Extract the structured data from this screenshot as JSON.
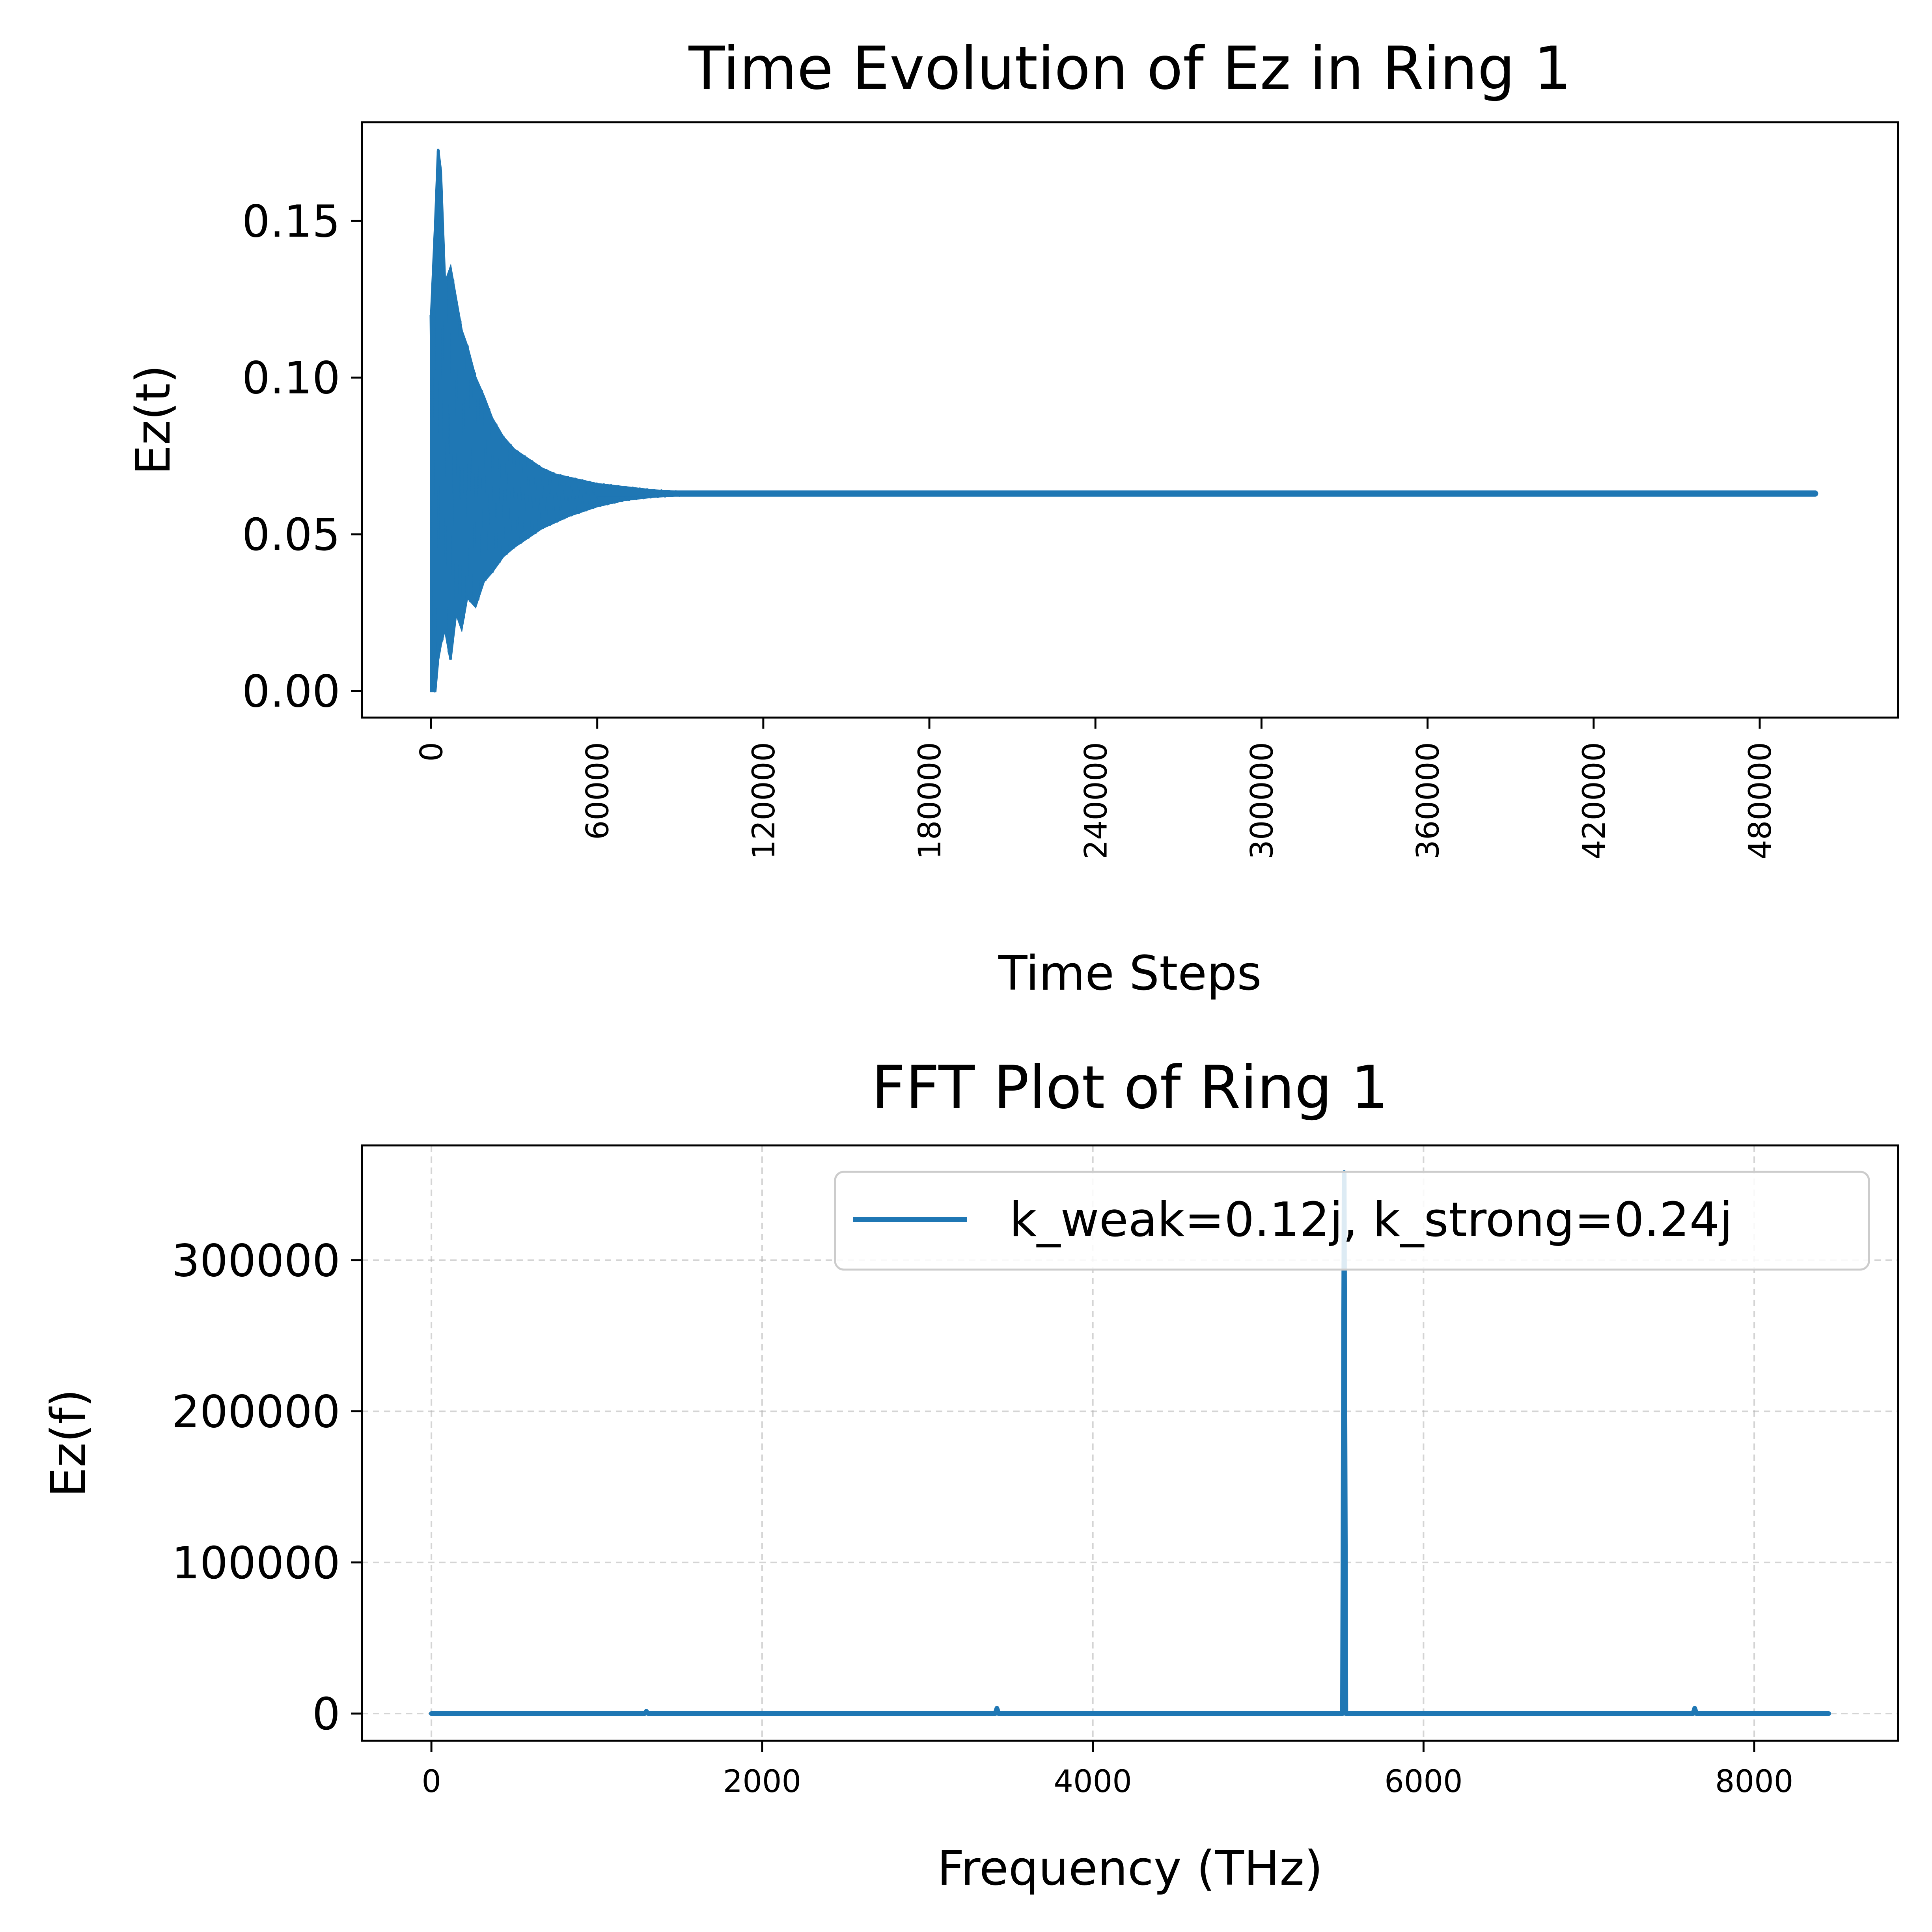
{
  "chart_data": [
    {
      "type": "line",
      "title": "Time Evolution of Ez in Ring 1",
      "xlabel": "Time Steps",
      "ylabel": "Ez(t)",
      "xlim": [
        -25000,
        530000
      ],
      "ylim": [
        -0.0085,
        0.1815
      ],
      "xticks": [
        0,
        60000,
        120000,
        180000,
        240000,
        300000,
        360000,
        420000,
        480000
      ],
      "xtick_labels": [
        "0",
        "60000",
        "120000",
        "180000",
        "240000",
        "300000",
        "360000",
        "420000",
        "480000"
      ],
      "xtick_rotation": "vertical",
      "yticks": [
        0.0,
        0.05,
        0.1,
        0.15
      ],
      "ytick_labels": [
        "0.00",
        "0.05",
        "0.10",
        "0.15"
      ],
      "grid": false,
      "color": "#1f77b4",
      "series": [
        {
          "kind": "damped-oscillation-envelope",
          "steady_value": 0.063,
          "x": [
            0,
            1500,
            2500,
            3500,
            5000,
            7000,
            9000,
            11000,
            13000,
            16000,
            19000,
            22000,
            26000,
            30000,
            35000,
            40000,
            45000,
            50000,
            60000,
            70000,
            80000,
            90000,
            100000,
            120000,
            500000
          ],
          "upper": [
            0.12,
            0.15,
            0.173,
            0.166,
            0.13,
            0.135,
            0.125,
            0.115,
            0.11,
            0.1,
            0.094,
            0.087,
            0.081,
            0.077,
            0.074,
            0.071,
            0.069,
            0.068,
            0.066,
            0.065,
            0.064,
            0.0635,
            0.063,
            0.063,
            0.063
          ],
          "lower": [
            0.0,
            0.0,
            0.01,
            0.015,
            0.02,
            0.01,
            0.025,
            0.02,
            0.03,
            0.027,
            0.035,
            0.038,
            0.043,
            0.046,
            0.049,
            0.052,
            0.054,
            0.056,
            0.059,
            0.061,
            0.062,
            0.0625,
            0.063,
            0.063,
            0.063
          ]
        }
      ]
    },
    {
      "type": "line",
      "title": "FFT Plot of Ring 1",
      "xlabel": "Frequency (THz)",
      "ylabel": "Ez(f)",
      "xlim": [
        -420,
        8870
      ],
      "ylim": [
        -18000,
        376000
      ],
      "xticks": [
        0,
        2000,
        4000,
        6000,
        8000
      ],
      "xtick_labels": [
        "0",
        "2000",
        "4000",
        "6000",
        "8000"
      ],
      "yticks": [
        0,
        100000,
        200000,
        300000
      ],
      "ytick_labels": [
        "0",
        "100000",
        "200000",
        "300000"
      ],
      "grid": true,
      "legend_position": "upper-right",
      "color": "#1f77b4",
      "series": [
        {
          "name": "k_weak=0.12j, k_strong=0.24j",
          "x": [
            0,
            1290,
            1300,
            1310,
            3410,
            3420,
            3430,
            5510,
            5520,
            5530,
            7630,
            7640,
            7650,
            8450
          ],
          "y": [
            0,
            0,
            1500,
            0,
            0,
            3500,
            0,
            0,
            358000,
            0,
            0,
            3500,
            0,
            0
          ]
        }
      ]
    }
  ]
}
